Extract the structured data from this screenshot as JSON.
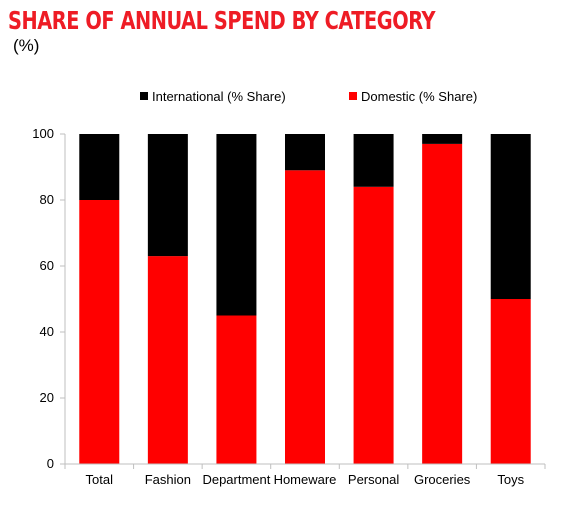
{
  "title": "SHARE OF ANNUAL SPEND BY CATEGORY",
  "subtitle": "(%)",
  "colors": {
    "international": "#000000",
    "domestic": "#ff0000",
    "title": "#ee1c25"
  },
  "chart_data": {
    "type": "bar",
    "stacked": true,
    "categories": [
      "Total",
      "Fashion",
      "Department",
      "Homeware",
      "Personal",
      "Groceries",
      "Toys"
    ],
    "series": [
      {
        "name": "Domestic (% Share)",
        "values": [
          80,
          63,
          45,
          89,
          84,
          97,
          50
        ]
      },
      {
        "name": "International (% Share)",
        "values": [
          20,
          37,
          55,
          11,
          16,
          3,
          50
        ]
      }
    ],
    "ylim": [
      0,
      100
    ],
    "yticks": [
      0,
      20,
      40,
      60,
      80,
      100
    ],
    "legend": "top",
    "grid": false
  }
}
